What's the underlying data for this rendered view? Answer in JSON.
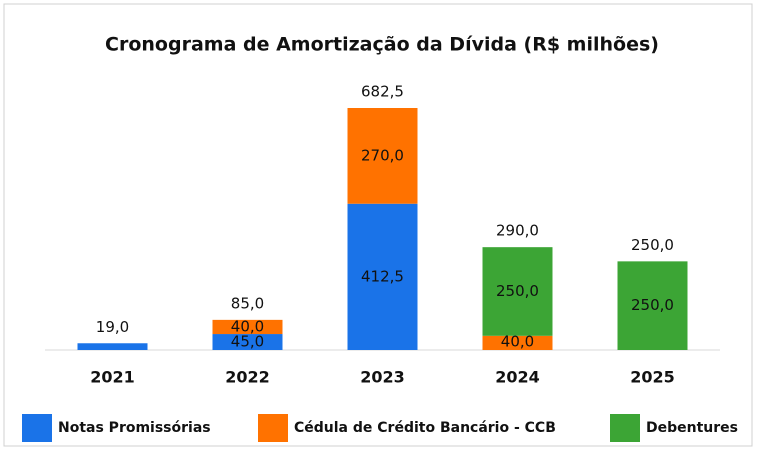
{
  "chart_data": {
    "type": "stacked_bar",
    "title": "Cronograma de Amortização da Dívida (R$ milhões)",
    "categories": [
      "2021",
      "2022",
      "2023",
      "2024",
      "2025"
    ],
    "series": [
      {
        "name": "Notas Promissórias",
        "color": "#1a73e8",
        "values": [
          19,
          45,
          412.5,
          null,
          null
        ],
        "value_labels": [
          null,
          "45,0",
          "412,5",
          null,
          null
        ]
      },
      {
        "name": "Cédula de Crédito Bancário - CCB",
        "color": "#ff7200",
        "values": [
          null,
          40,
          270,
          40,
          null
        ],
        "value_labels": [
          null,
          "40,0",
          "270,0",
          "40,0",
          null
        ]
      },
      {
        "name": "Debentures",
        "color": "#3ca535",
        "values": [
          null,
          null,
          null,
          250,
          250
        ],
        "value_labels": [
          null,
          null,
          null,
          "250,0",
          "250,0"
        ]
      }
    ],
    "totals": [
      19,
      85,
      682.5,
      290,
      250
    ],
    "totals_labels": [
      "19,0",
      "85,0",
      "682,5",
      "290,0",
      "250,0"
    ]
  }
}
